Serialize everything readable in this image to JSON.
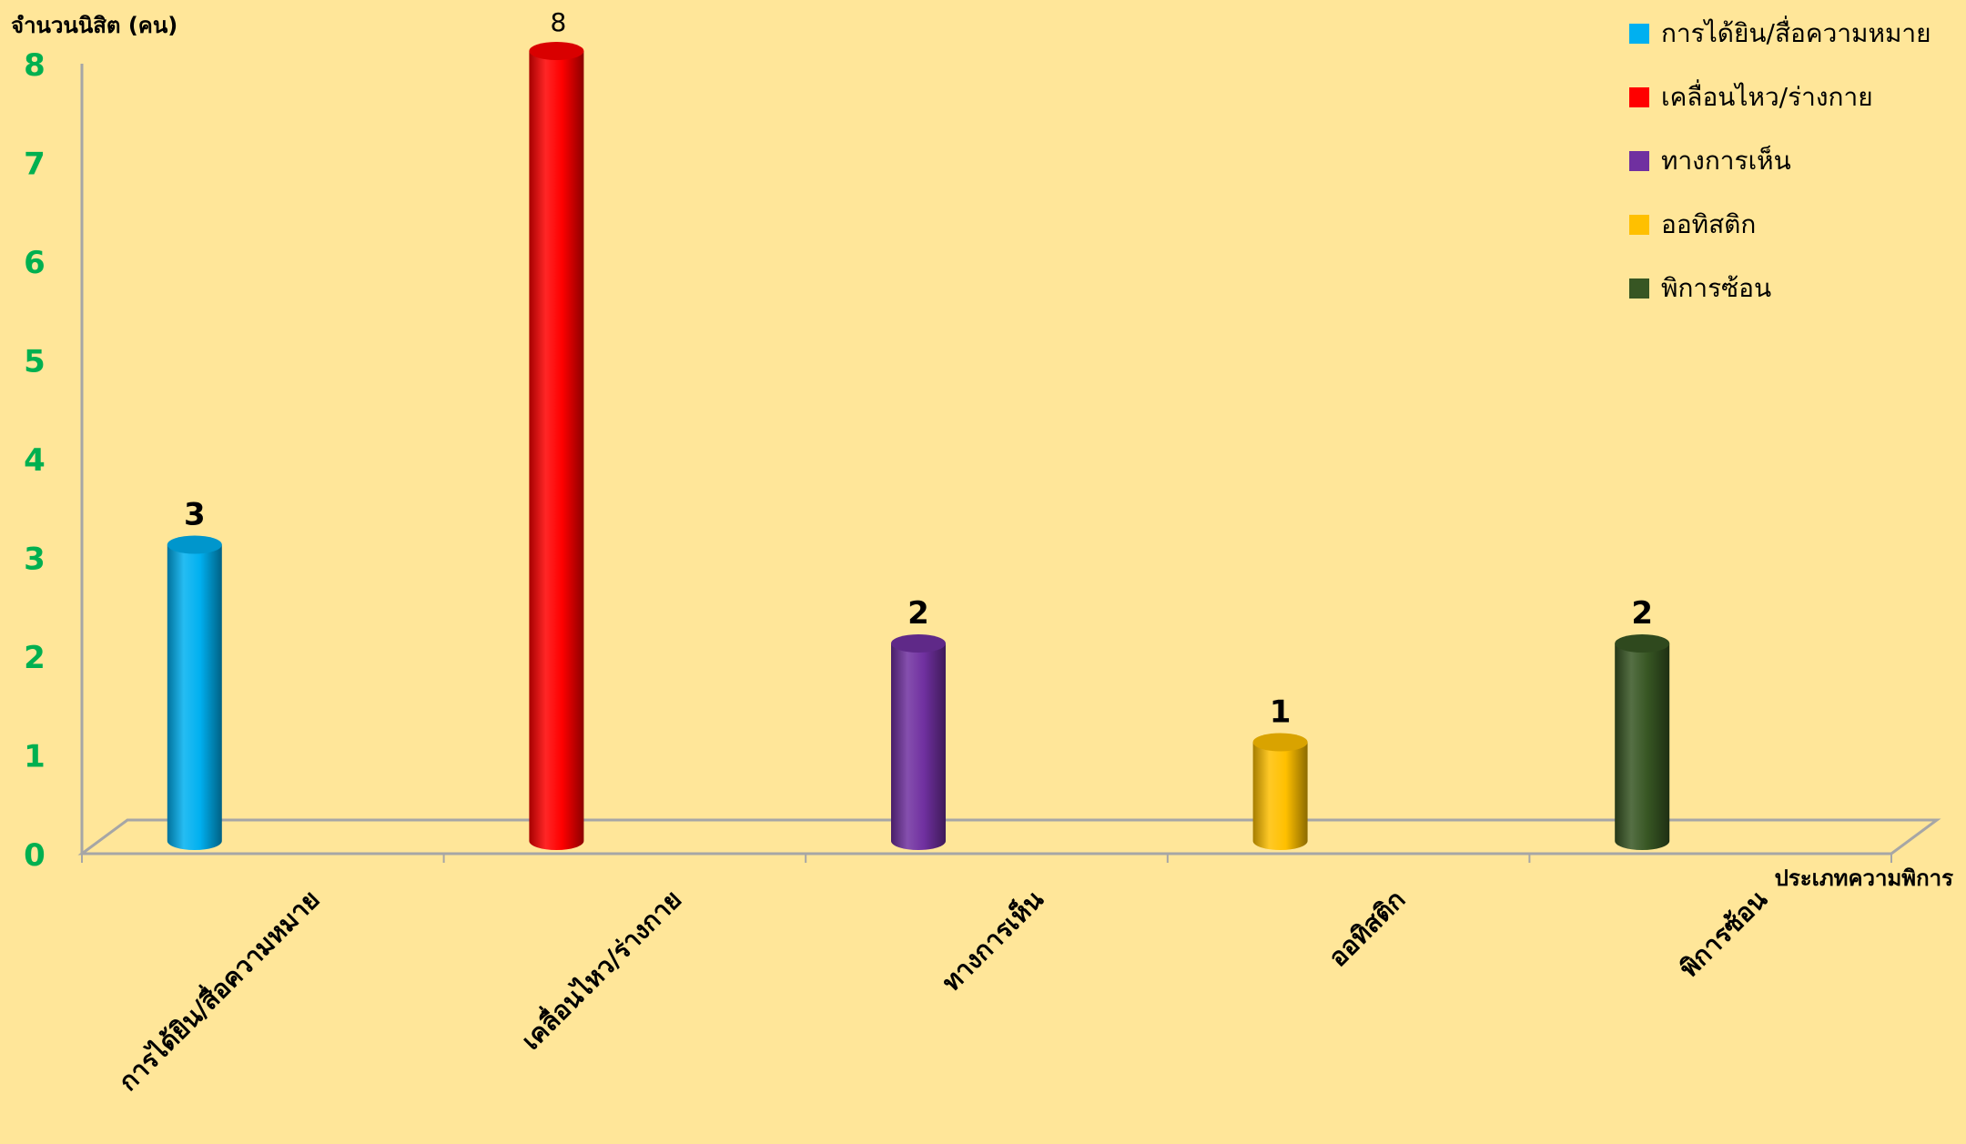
{
  "chart_data": {
    "type": "bar",
    "title": "",
    "ylabel": "จำนวนนิสิต (คน)",
    "xlabel": "ประเภทความพิการ",
    "ylim": [
      0,
      8
    ],
    "yticks": [
      "0",
      "1",
      "2",
      "3",
      "4",
      "5",
      "6",
      "7",
      "8"
    ],
    "categories": [
      "การได้ยิน/สื่อความหมาย",
      "เคลื่อนไหว/ร่างกาย",
      "ทางการเห็น",
      "ออทิสติก",
      "พิการซ้อน"
    ],
    "values": [
      3,
      8,
      2,
      1,
      2
    ],
    "value_labels": [
      "3",
      "8",
      "2",
      "1",
      "2"
    ],
    "colors": [
      "#00B0F0",
      "#FF0000",
      "#7030A0",
      "#FFC000",
      "#375623"
    ],
    "legend": {
      "position": "top-right",
      "entries": [
        "การได้ยิน/สื่อความหมาย",
        "เคลื่อนไหว/ร่างกาย",
        "ทางการเห็น",
        "ออทิสติก",
        "พิการซ้อน"
      ]
    },
    "grid": false,
    "style": {
      "background": "#FFE699",
      "tick_color": "#00B050",
      "axis_color": "#A6A6A6"
    }
  }
}
